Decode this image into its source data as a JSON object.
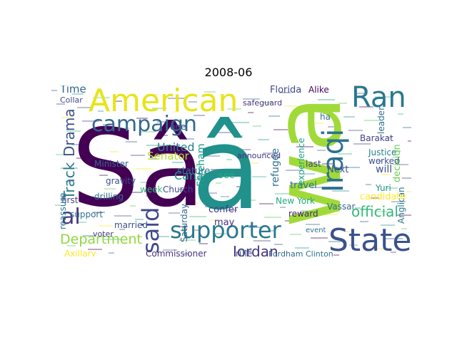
{
  "title": "2008-06",
  "words": [
    {
      "text": "Sâ",
      "color": "#440154"
    },
    {
      "text": "â",
      "color": "#21918c"
    },
    {
      "text": "wa",
      "color": "#a0da39"
    },
    {
      "text": "American",
      "color": "#e7e419"
    },
    {
      "text": "Ran",
      "color": "#2a788e"
    },
    {
      "text": "Iraqi",
      "color": "#2c728e"
    },
    {
      "text": "State",
      "color": "#3b528b"
    },
    {
      "text": "supporter",
      "color": "#2a788e"
    },
    {
      "text": "campaign",
      "color": "#31688e"
    },
    {
      "text": "said",
      "color": "#3e4a89"
    },
    {
      "text": "al",
      "color": "#453781"
    },
    {
      "text": "official",
      "color": "#35b779"
    },
    {
      "text": "Department",
      "color": "#90d743"
    },
    {
      "text": "Jordan",
      "color": "#46337f"
    },
    {
      "text": "United",
      "color": "#26828e"
    },
    {
      "text": "Senator",
      "color": "#b5de2b"
    },
    {
      "text": "Track",
      "color": "#2a788e"
    },
    {
      "text": "Drama",
      "color": "#3b528b"
    },
    {
      "text": "Time",
      "color": "#31688e"
    },
    {
      "text": "Canal",
      "color": "#21918c"
    },
    {
      "text": "Fareham",
      "color": "#1f9e89"
    },
    {
      "text": "refugee",
      "color": "#2c728e"
    },
    {
      "text": "will",
      "color": "#3b528b"
    },
    {
      "text": "Justice",
      "color": "#26828e"
    },
    {
      "text": "decision",
      "color": "#6ece58"
    },
    {
      "text": "Florida",
      "color": "#3e4a89"
    },
    {
      "text": "Alike",
      "color": "#440154"
    },
    {
      "text": "safeguard",
      "color": "#46327e"
    },
    {
      "text": "Barakat",
      "color": "#433e85"
    },
    {
      "text": "leader",
      "color": "#2d708e"
    },
    {
      "text": "worked",
      "color": "#3b528b"
    },
    {
      "text": "Yuri",
      "color": "#21918c"
    },
    {
      "text": "Anglican",
      "color": "#2a788e"
    },
    {
      "text": "candidate",
      "color": "#fde725"
    },
    {
      "text": "Vassar",
      "color": "#31688e"
    },
    {
      "text": "New York",
      "color": "#22a884"
    },
    {
      "text": "travel",
      "color": "#2c728e"
    },
    {
      "text": "experience",
      "color": "#1fa187"
    },
    {
      "text": "last",
      "color": "#414487"
    },
    {
      "text": "Next",
      "color": "#3b528b"
    },
    {
      "text": "announced",
      "color": "#46337f"
    },
    {
      "text": "reward",
      "color": "#482475"
    },
    {
      "text": "event",
      "color": "#2c728e"
    },
    {
      "text": "Fordham",
      "color": "#31688e"
    },
    {
      "text": "Clinton",
      "color": "#2d708e"
    },
    {
      "text": "rule",
      "color": "#3e4a89"
    },
    {
      "text": "Commissioner",
      "color": "#46337f"
    },
    {
      "text": "Axillary",
      "color": "#fde725"
    },
    {
      "text": "Minister",
      "color": "#31688e"
    },
    {
      "text": "drilling",
      "color": "#2c728e"
    },
    {
      "text": "gravity",
      "color": "#3b528b"
    },
    {
      "text": "stature",
      "color": "#2a788e"
    },
    {
      "text": "week",
      "color": "#35b779"
    },
    {
      "text": "Church",
      "color": "#3e4a89"
    },
    {
      "text": "first",
      "color": "#414487"
    },
    {
      "text": "support",
      "color": "#2c728e"
    },
    {
      "text": "married",
      "color": "#3b528b"
    },
    {
      "text": "voter",
      "color": "#46337f"
    },
    {
      "text": "Saturday",
      "color": "#31688e"
    },
    {
      "text": "confer",
      "color": "#443983"
    },
    {
      "text": "may",
      "color": "#46327e"
    },
    {
      "text": "see",
      "color": "#22a884"
    },
    {
      "text": "one",
      "color": "#3b528b"
    },
    {
      "text": "reassure",
      "color": "#2c728e"
    },
    {
      "text": "Collar",
      "color": "#3e4a89"
    },
    {
      "text": "ha",
      "color": "#2c728e"
    }
  ]
}
